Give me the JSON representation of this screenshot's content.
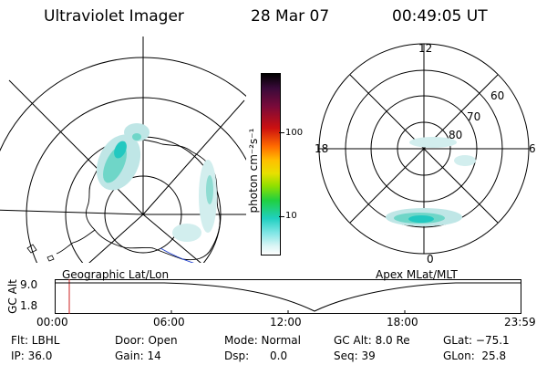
{
  "header": {
    "instrument": "Ultraviolet Imager",
    "date": "28 Mar 07",
    "time": "00:49:05 UT"
  },
  "colorbar": {
    "unit_label": "photon cm⁻²s⁻¹",
    "ticks": [
      "100",
      "10"
    ]
  },
  "geo_panel": {
    "label": "Geographic Lat/Lon"
  },
  "polar_panel": {
    "label": "Apex MLat/MLT",
    "hours": {
      "top": "12",
      "left": "18",
      "right": "6",
      "bottom": "0"
    },
    "rings": [
      "60",
      "70",
      "80"
    ]
  },
  "timeline": {
    "ylabel": "GC Alt",
    "y_ticks": [
      "9.0",
      "1.8"
    ],
    "x_ticks": [
      "00:00",
      "06:00",
      "12:00",
      "18:00",
      "23:59"
    ],
    "marker_color": "#cc2222"
  },
  "info": {
    "filter": "Flt: LBHL",
    "ip": "IP: 36.0",
    "door": "Door: Open",
    "gain": "Gain: 14",
    "mode": "Mode: Normal",
    "dsp": "Dsp:      0.0",
    "gc_alt": "GC Alt: 8.0 Re",
    "seq": "Seq: 39",
    "glat": "GLat: −75.1",
    "glon": "GLon:  25.8"
  },
  "colors": {
    "aurora_dim": "#bfe6e6",
    "aurora_mid": "#6fd6c8",
    "aurora_bright": "#22c8c0",
    "map_blue": "#2040d0"
  }
}
